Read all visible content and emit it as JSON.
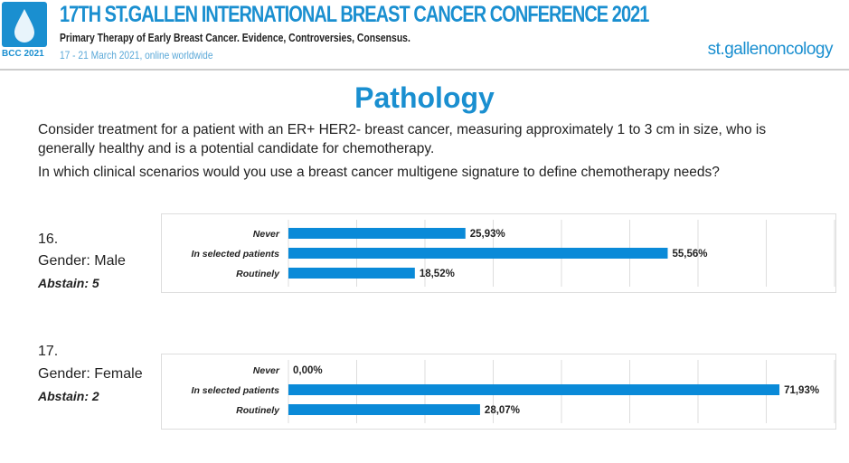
{
  "header": {
    "title": "17TH ST.GALLEN INTERNATIONAL BREAST CANCER CONFERENCE 2021",
    "subtitle": "Primary Therapy of Early Breast Cancer. Evidence, Controversies, Consensus.",
    "dates": "17 - 21 March 2021, online worldwide",
    "logo_text": "BCC 2021",
    "brand": "st.gallenoncology"
  },
  "slide": {
    "title": "Pathology",
    "question1": "Consider treatment for a patient with an ER+ HER2- breast cancer, measuring approximately 1 to 3 cm in size, who is generally healthy and is a potential candidate for chemotherapy.",
    "question2": "In which clinical scenarios would you use a breast cancer multigene signature to define chemotherapy needs?"
  },
  "items": [
    {
      "number": "16.",
      "group": "Gender: Male",
      "abstain": "Abstain: 5"
    },
    {
      "number": "17.",
      "group": "Gender: Female",
      "abstain": "Abstain: 2"
    }
  ],
  "colors": {
    "bar": "#0a8ad8",
    "accent": "#1a8fd0"
  },
  "chart_data": [
    {
      "type": "bar",
      "orientation": "horizontal",
      "title": "Gender: Male",
      "categories": [
        "Never",
        "In selected patients",
        "Routinely"
      ],
      "values": [
        25.93,
        55.56,
        18.52
      ],
      "labels": [
        "25,93%",
        "55,56%",
        "18,52%"
      ],
      "xlim": [
        0,
        80
      ],
      "grid": true
    },
    {
      "type": "bar",
      "orientation": "horizontal",
      "title": "Gender: Female",
      "categories": [
        "Never",
        "In selected patients",
        "Routinely"
      ],
      "values": [
        0,
        71.93,
        28.07
      ],
      "labels": [
        "0,00%",
        "71,93%",
        "28,07%"
      ],
      "xlim": [
        0,
        80
      ],
      "grid": true
    }
  ]
}
